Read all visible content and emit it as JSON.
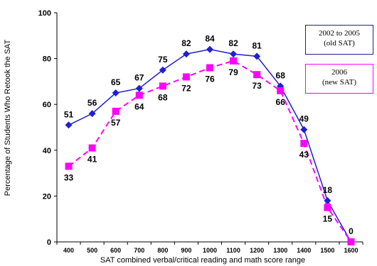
{
  "chart_data": {
    "type": "line",
    "title": "",
    "xlabel": "SAT combined verbal/critical reading and math score range",
    "ylabel": "Percentage of Students Who Retook the SAT",
    "categories": [
      "400",
      "500",
      "600",
      "700",
      "800",
      "900",
      "1000",
      "1100",
      "1200",
      "1300",
      "1400",
      "1500",
      "1600"
    ],
    "ylim": [
      0,
      100
    ],
    "yticks": [
      "0",
      "20",
      "40",
      "60",
      "80",
      "100"
    ],
    "grid": false,
    "legend_position": "right",
    "series": [
      {
        "name": "2002 to 2005 (old SAT)",
        "legend_line1": "2002 to 2005",
        "legend_line2": "(old SAT)",
        "values": [
          51,
          56,
          65,
          67,
          75,
          82,
          84,
          82,
          81,
          68,
          49,
          18,
          0
        ],
        "labels": [
          "51",
          "56",
          "65",
          "67",
          "75",
          "82",
          "84",
          "82",
          "81",
          "68",
          "49",
          "18",
          "0"
        ],
        "color": "#1f1fcf",
        "marker": "diamond",
        "line_style": "solid"
      },
      {
        "name": "2006 (new SAT)",
        "legend_line1": "2006",
        "legend_line2": "(new SAT)",
        "values": [
          33,
          41,
          57,
          64,
          68,
          72,
          76,
          79,
          73,
          66,
          43,
          15,
          0
        ],
        "labels": [
          "33",
          "41",
          "57",
          "64",
          "68",
          "72",
          "76",
          "79",
          "73",
          "66",
          "43",
          "15",
          ""
        ],
        "color": "#ff00ff",
        "marker": "square",
        "line_style": "dashed"
      }
    ]
  }
}
